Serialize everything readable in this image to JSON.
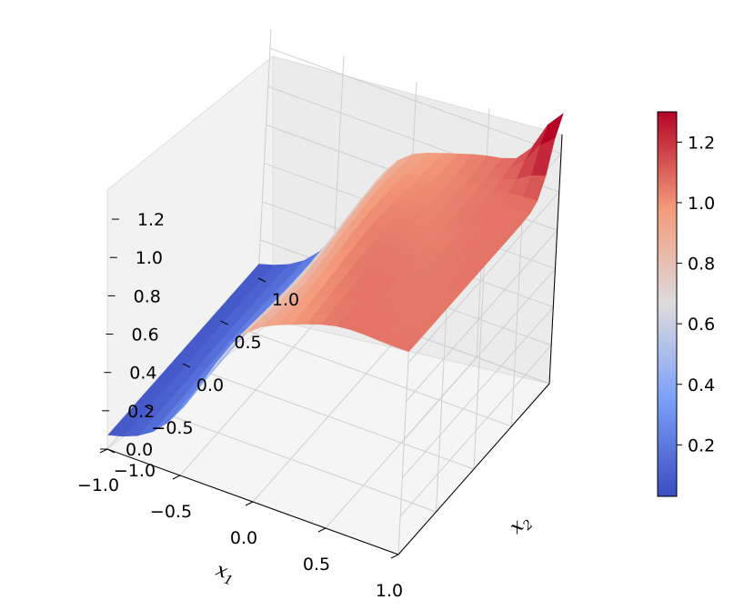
{
  "chart_data": {
    "type": "surface3d",
    "title": "",
    "colormap": "coolwarm",
    "xlabel": "x",
    "xlabel_sub": "1",
    "ylabel": "x",
    "ylabel_sub": "2",
    "zlabel": "",
    "xlim": [
      -1.0,
      1.0
    ],
    "ylim": [
      -1.0,
      1.0
    ],
    "zlim": [
      0.0,
      1.3
    ],
    "x_ticks": [
      "−1.0",
      "−0.5",
      "0.0",
      "0.5",
      "1.0"
    ],
    "y_ticks": [
      "−1.0",
      "−0.5",
      "0.0",
      "0.5",
      "1.0"
    ],
    "z_ticks": [
      "0.0",
      "0.2",
      "0.4",
      "0.6",
      "0.8",
      "1.0",
      "1.2"
    ],
    "colorbar": {
      "min": 0.03,
      "max": 1.3,
      "ticks": [
        "0.2",
        "0.4",
        "0.6",
        "0.8",
        "1.0",
        "1.2"
      ]
    },
    "grid": true,
    "surface_description": "Sigmoid-like rise in x1 from ~0.05 at x1=-1 to ~1.05 plateau for x1>0.3, nearly constant along x2, with a sharp peak near 1.3 at x1=1, x2=1",
    "x_samples": [
      -1.0,
      -0.75,
      -0.5,
      -0.25,
      0.0,
      0.25,
      0.5,
      0.75,
      1.0
    ],
    "z_profile_along_x1": [
      0.05,
      0.12,
      0.28,
      0.55,
      0.82,
      1.0,
      1.05,
      1.06,
      1.05
    ]
  }
}
